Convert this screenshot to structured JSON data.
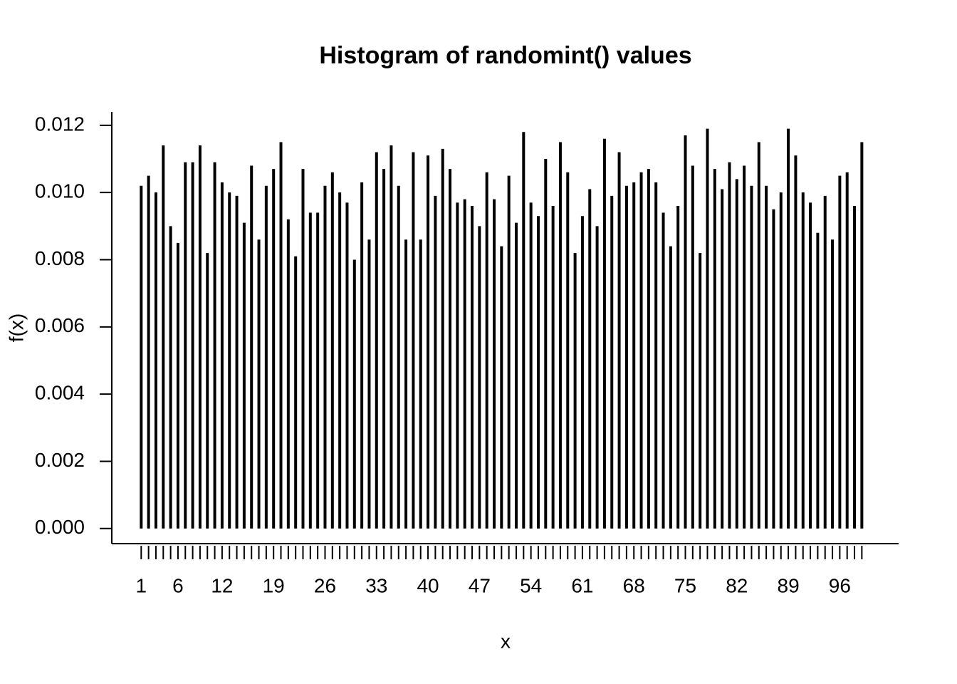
{
  "chart_data": {
    "type": "spike",
    "title": "Histogram of randomint() values",
    "x_label": "x",
    "y_label": "f(x)",
    "color": "#000000",
    "x": [
      1,
      2,
      3,
      4,
      5,
      6,
      7,
      8,
      9,
      10,
      11,
      12,
      13,
      14,
      15,
      16,
      17,
      18,
      19,
      20,
      21,
      22,
      23,
      24,
      25,
      26,
      27,
      28,
      29,
      30,
      31,
      32,
      33,
      34,
      35,
      36,
      37,
      38,
      39,
      40,
      41,
      42,
      43,
      44,
      45,
      46,
      47,
      48,
      49,
      50,
      51,
      52,
      53,
      54,
      55,
      56,
      57,
      58,
      59,
      60,
      61,
      62,
      63,
      64,
      65,
      66,
      67,
      68,
      69,
      70,
      71,
      72,
      73,
      74,
      75,
      76,
      77,
      78,
      79,
      80,
      81,
      82,
      83,
      84,
      85,
      86,
      87,
      88,
      89,
      90,
      91,
      92,
      93,
      94,
      95,
      96,
      97,
      98,
      99
    ],
    "values": [
      0.0102,
      0.0105,
      0.01,
      0.0114,
      0.009,
      0.0085,
      0.0109,
      0.0109,
      0.0114,
      0.0082,
      0.0109,
      0.0103,
      0.01,
      0.0099,
      0.0091,
      0.0108,
      0.0086,
      0.0102,
      0.0107,
      0.0115,
      0.0092,
      0.0081,
      0.0107,
      0.0094,
      0.0094,
      0.0102,
      0.0106,
      0.01,
      0.0097,
      0.008,
      0.0103,
      0.0086,
      0.0112,
      0.0107,
      0.0114,
      0.0102,
      0.0086,
      0.0112,
      0.0086,
      0.0111,
      0.0099,
      0.0113,
      0.0107,
      0.0097,
      0.0098,
      0.0096,
      0.009,
      0.0106,
      0.0098,
      0.0084,
      0.0105,
      0.0091,
      0.0118,
      0.0097,
      0.0093,
      0.011,
      0.0096,
      0.0115,
      0.0106,
      0.0082,
      0.0093,
      0.0101,
      0.009,
      0.0116,
      0.0099,
      0.0112,
      0.0102,
      0.0103,
      0.0106,
      0.0107,
      0.0103,
      0.0094,
      0.0084,
      0.0096,
      0.0117,
      0.0108,
      0.0082,
      0.0119,
      0.0107,
      0.0101,
      0.0109,
      0.0104,
      0.0108,
      0.0102,
      0.0115,
      0.0102,
      0.0095,
      0.01,
      0.0119,
      0.0111,
      0.01,
      0.0097,
      0.0088,
      0.0099,
      0.0086,
      0.0105,
      0.0106,
      0.0096,
      0.0115
    ],
    "xlim": [
      -3,
      104
    ],
    "xticks": [
      1,
      6,
      12,
      19,
      26,
      33,
      40,
      47,
      54,
      61,
      68,
      75,
      82,
      89,
      96
    ],
    "ylim": [
      -0.00045,
      0.0124
    ],
    "yticks": [
      {
        "value": 0,
        "label": "0.000"
      },
      {
        "value": 0.002,
        "label": "0.002"
      },
      {
        "value": 0.004,
        "label": "0.004"
      },
      {
        "value": 0.006,
        "label": "0.006"
      },
      {
        "value": 0.008,
        "label": "0.008"
      },
      {
        "value": 0.01,
        "label": "0.010"
      },
      {
        "value": 0.012,
        "label": "0.012"
      }
    ]
  }
}
